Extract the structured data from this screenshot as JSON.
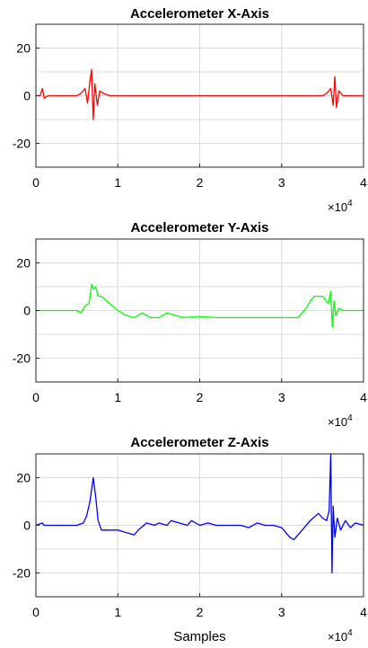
{
  "chart_data": [
    {
      "type": "line",
      "title": "Accelerometer X-Axis",
      "xlabel": "",
      "ylabel": "",
      "xlim": [
        0,
        40000
      ],
      "ylim": [
        -30,
        30
      ],
      "x_ticks": [
        0,
        1,
        2,
        3,
        4
      ],
      "y_ticks": [
        20,
        0,
        -20
      ],
      "x_multiplier": "×10",
      "x_multiplier_exp": "4",
      "grid": true,
      "series": [
        {
          "color": "#ff0000",
          "x": [
            0,
            500,
            800,
            1000,
            1500,
            3000,
            5000,
            5500,
            6000,
            6300,
            6600,
            6800,
            7000,
            7200,
            7500,
            7800,
            8200,
            9000,
            10000,
            12000,
            14000,
            16000,
            18000,
            20000,
            22000,
            24000,
            26000,
            28000,
            30000,
            32000,
            34000,
            35000,
            35500,
            36000,
            36300,
            36500,
            36700,
            37000,
            37500,
            38000,
            39000,
            40000
          ],
          "y": [
            0,
            0,
            3,
            -1,
            0,
            0,
            0,
            1,
            3,
            -3,
            6,
            11,
            -10,
            5,
            -4,
            2,
            1,
            0,
            0,
            0,
            0,
            0,
            0,
            0,
            0,
            0,
            0,
            0,
            0,
            0,
            0,
            0,
            1,
            3,
            -4,
            8,
            -5,
            2,
            0,
            0,
            0,
            0
          ]
        }
      ]
    },
    {
      "type": "line",
      "title": "Accelerometer Y-Axis",
      "xlabel": "",
      "ylabel": "",
      "xlim": [
        0,
        40000
      ],
      "ylim": [
        -30,
        30
      ],
      "x_ticks": [
        0,
        1,
        2,
        3,
        4
      ],
      "y_ticks": [
        20,
        0,
        -20
      ],
      "x_multiplier": "×10",
      "x_multiplier_exp": "4",
      "grid": true,
      "series": [
        {
          "color": "#00ff00",
          "x": [
            0,
            2000,
            5000,
            5500,
            6000,
            6500,
            6800,
            7000,
            7300,
            7600,
            8000,
            9000,
            10000,
            11000,
            12000,
            13000,
            14000,
            15000,
            16000,
            17000,
            18000,
            20000,
            22000,
            24000,
            26000,
            28000,
            30000,
            31000,
            32000,
            33000,
            33500,
            34000,
            35000,
            35700,
            36000,
            36200,
            36400,
            36600,
            37000,
            37500,
            38000,
            40000
          ],
          "y": [
            0,
            0,
            0,
            -1,
            2,
            3,
            11,
            9,
            10,
            6,
            6,
            3,
            0,
            -2,
            -3,
            -1,
            -3,
            -3,
            -1,
            -2,
            -3,
            -2.5,
            -3,
            -3,
            -3,
            -3,
            -3,
            -3,
            -3,
            1,
            4,
            6,
            6,
            3,
            8,
            -7,
            4,
            -2,
            1,
            0,
            0,
            0
          ]
        }
      ]
    },
    {
      "type": "line",
      "title": "Accelerometer Z-Axis",
      "xlabel": "Samples",
      "ylabel": "",
      "xlim": [
        0,
        40000
      ],
      "ylim": [
        -30,
        30
      ],
      "x_ticks": [
        0,
        1,
        2,
        3,
        4
      ],
      "y_ticks": [
        20,
        0,
        -20
      ],
      "x_multiplier": "×10",
      "x_multiplier_exp": "4",
      "grid": true,
      "series": [
        {
          "color": "#0000ff",
          "x": [
            0,
            800,
            1000,
            3000,
            5000,
            5800,
            6200,
            6600,
            7000,
            7300,
            7600,
            8000,
            8500,
            10000,
            11000,
            12000,
            12500,
            13500,
            14500,
            15000,
            16000,
            16500,
            17500,
            18500,
            19000,
            20000,
            21000,
            22000,
            23000,
            24000,
            25000,
            26000,
            27000,
            28000,
            29000,
            30000,
            31000,
            31500,
            32500,
            33500,
            34500,
            35000,
            35500,
            35800,
            36000,
            36150,
            36300,
            36500,
            36800,
            37200,
            37800,
            38400,
            39000,
            40000
          ],
          "y": [
            0,
            1,
            0,
            0,
            0,
            1,
            4,
            10,
            20,
            12,
            2,
            -2,
            -2,
            -2,
            -3,
            -4,
            -2,
            1,
            0,
            1,
            0,
            2,
            1,
            0,
            2,
            0,
            1,
            0,
            0,
            0,
            0,
            -1,
            1,
            0,
            0,
            -1,
            -5,
            -6,
            -2,
            2,
            5,
            3,
            2,
            6,
            30,
            -20,
            8,
            -5,
            3,
            -2,
            2,
            -1,
            1,
            0
          ]
        }
      ]
    }
  ]
}
